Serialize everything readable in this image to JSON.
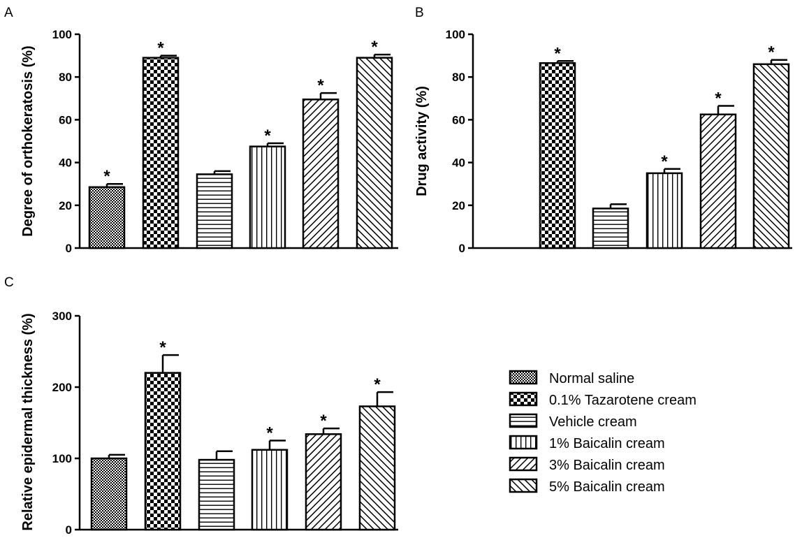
{
  "legend": [
    "Normal saline",
    "0.1% Tazarotene cream",
    "Vehicle cream",
    "1% Baicalin cream",
    "3% Baicalin cream",
    "5% Baicalin cream"
  ],
  "chart_data": [
    {
      "panel": "A",
      "type": "bar",
      "categories": [
        "Normal saline",
        "0.1% Tazarotene cream",
        "Vehicle cream",
        "1% Baicalin cream",
        "3% Baicalin cream",
        "5% Baicalin cream"
      ],
      "values": [
        28.5,
        89,
        34.5,
        47.5,
        69.5,
        89
      ],
      "errors": [
        1.5,
        1,
        1.5,
        1.5,
        3,
        1.5
      ],
      "significant": [
        true,
        true,
        false,
        true,
        true,
        true
      ],
      "ylabel": "Degree of orthokeratosis (%)",
      "ylim": [
        0,
        100
      ],
      "yticks": [
        0,
        20,
        40,
        60,
        80,
        100
      ]
    },
    {
      "panel": "B",
      "type": "bar",
      "categories": [
        "Normal saline",
        "0.1% Tazarotene cream",
        "Vehicle cream",
        "1% Baicalin cream",
        "3% Baicalin cream",
        "5% Baicalin cream"
      ],
      "values": [
        null,
        86.5,
        18.5,
        35,
        62.5,
        86
      ],
      "errors": [
        null,
        1,
        2,
        2,
        4,
        2
      ],
      "significant": [
        false,
        true,
        false,
        true,
        true,
        true
      ],
      "ylabel": "Drug activity (%)",
      "ylim": [
        0,
        100
      ],
      "yticks": [
        0,
        20,
        40,
        60,
        80,
        100
      ]
    },
    {
      "panel": "C",
      "type": "bar",
      "categories": [
        "Normal saline",
        "0.1% Tazarotene cream",
        "Vehicle cream",
        "1% Baicalin cream",
        "3% Baicalin cream",
        "5% Baicalin cream"
      ],
      "values": [
        100,
        220,
        98,
        112,
        134,
        173
      ],
      "errors": [
        5,
        25,
        12,
        13,
        8,
        20
      ],
      "significant": [
        false,
        true,
        false,
        true,
        true,
        true
      ],
      "ylabel": "Relative epidermal thickness (%)",
      "ylim": [
        0,
        300
      ],
      "yticks": [
        0,
        100,
        200,
        300
      ]
    }
  ]
}
